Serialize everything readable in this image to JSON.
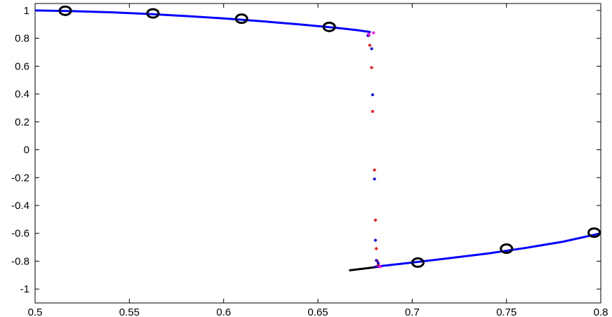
{
  "chart_data": {
    "type": "line",
    "title": "",
    "xlabel": "",
    "ylabel": "",
    "xlim": [
      0.5,
      0.8
    ],
    "ylim": [
      -1.1,
      1.05
    ],
    "grid": false,
    "legend": "none",
    "x_ticks": [
      0.5,
      0.55,
      0.6,
      0.65,
      0.7,
      0.75,
      0.8
    ],
    "x_tick_labels": [
      "0.5",
      "0.55",
      "0.6",
      "0.65",
      "0.7",
      "0.75",
      "0.8"
    ],
    "y_ticks": [
      1,
      0.8,
      0.6,
      0.4,
      0.2,
      0,
      -0.2,
      -0.4,
      -0.6,
      -0.8,
      -1
    ],
    "y_tick_labels": [
      "1",
      "0.8",
      "0.6",
      "0.4",
      "0.2",
      "0",
      "-0.2",
      "-0.4",
      "-0.6",
      "-0.8",
      "-1"
    ],
    "colors": {
      "upper_curve": "#0000ff",
      "lower_curve": "#0000ff",
      "black_segment": "#000000",
      "dots_red": "#ff0000",
      "dots_blue": "#0000ff",
      "dots_magenta": "#ff00ff",
      "markers": "#000000"
    },
    "series": [
      {
        "kind": "upper_curve",
        "x": [
          0.5,
          0.52,
          0.54,
          0.56,
          0.58,
          0.6,
          0.62,
          0.64,
          0.66,
          0.67,
          0.678
        ],
        "y": [
          1.0,
          0.995,
          0.987,
          0.975,
          0.96,
          0.943,
          0.923,
          0.9,
          0.875,
          0.86,
          0.845
        ]
      },
      {
        "kind": "lower_curve",
        "x": [
          0.68,
          0.69,
          0.7,
          0.72,
          0.74,
          0.76,
          0.78,
          0.8
        ],
        "y": [
          -0.84,
          -0.825,
          -0.81,
          -0.778,
          -0.745,
          -0.705,
          -0.66,
          -0.6
        ]
      },
      {
        "kind": "black_segment",
        "x": [
          0.667,
          0.672,
          0.677,
          0.682
        ],
        "y": [
          -0.865,
          -0.857,
          -0.849,
          -0.84
        ]
      },
      {
        "kind": "dots_red",
        "x": [
          0.677,
          0.6775,
          0.6785,
          0.679,
          0.68,
          0.6805,
          0.681,
          0.6815,
          0.682
        ],
        "y": [
          0.82,
          0.75,
          0.59,
          0.275,
          -0.145,
          -0.505,
          -0.71,
          -0.8,
          -0.83
        ]
      },
      {
        "kind": "dots_blue",
        "x": [
          0.6765,
          0.6785,
          0.679,
          0.68,
          0.6805,
          0.681,
          0.682
        ],
        "y": [
          0.82,
          0.725,
          0.395,
          -0.21,
          -0.65,
          -0.795,
          -0.815
        ]
      },
      {
        "kind": "dots_magenta",
        "x": [
          0.677,
          0.6795,
          0.683
        ],
        "y": [
          0.83,
          0.84,
          -0.84
        ]
      },
      {
        "kind": "markers",
        "x": [
          0.516,
          0.5625,
          0.6095,
          0.656,
          0.703,
          0.75,
          0.7965
        ],
        "y": [
          0.998,
          0.979,
          0.941,
          0.882,
          -0.81,
          -0.71,
          -0.595
        ]
      }
    ]
  }
}
